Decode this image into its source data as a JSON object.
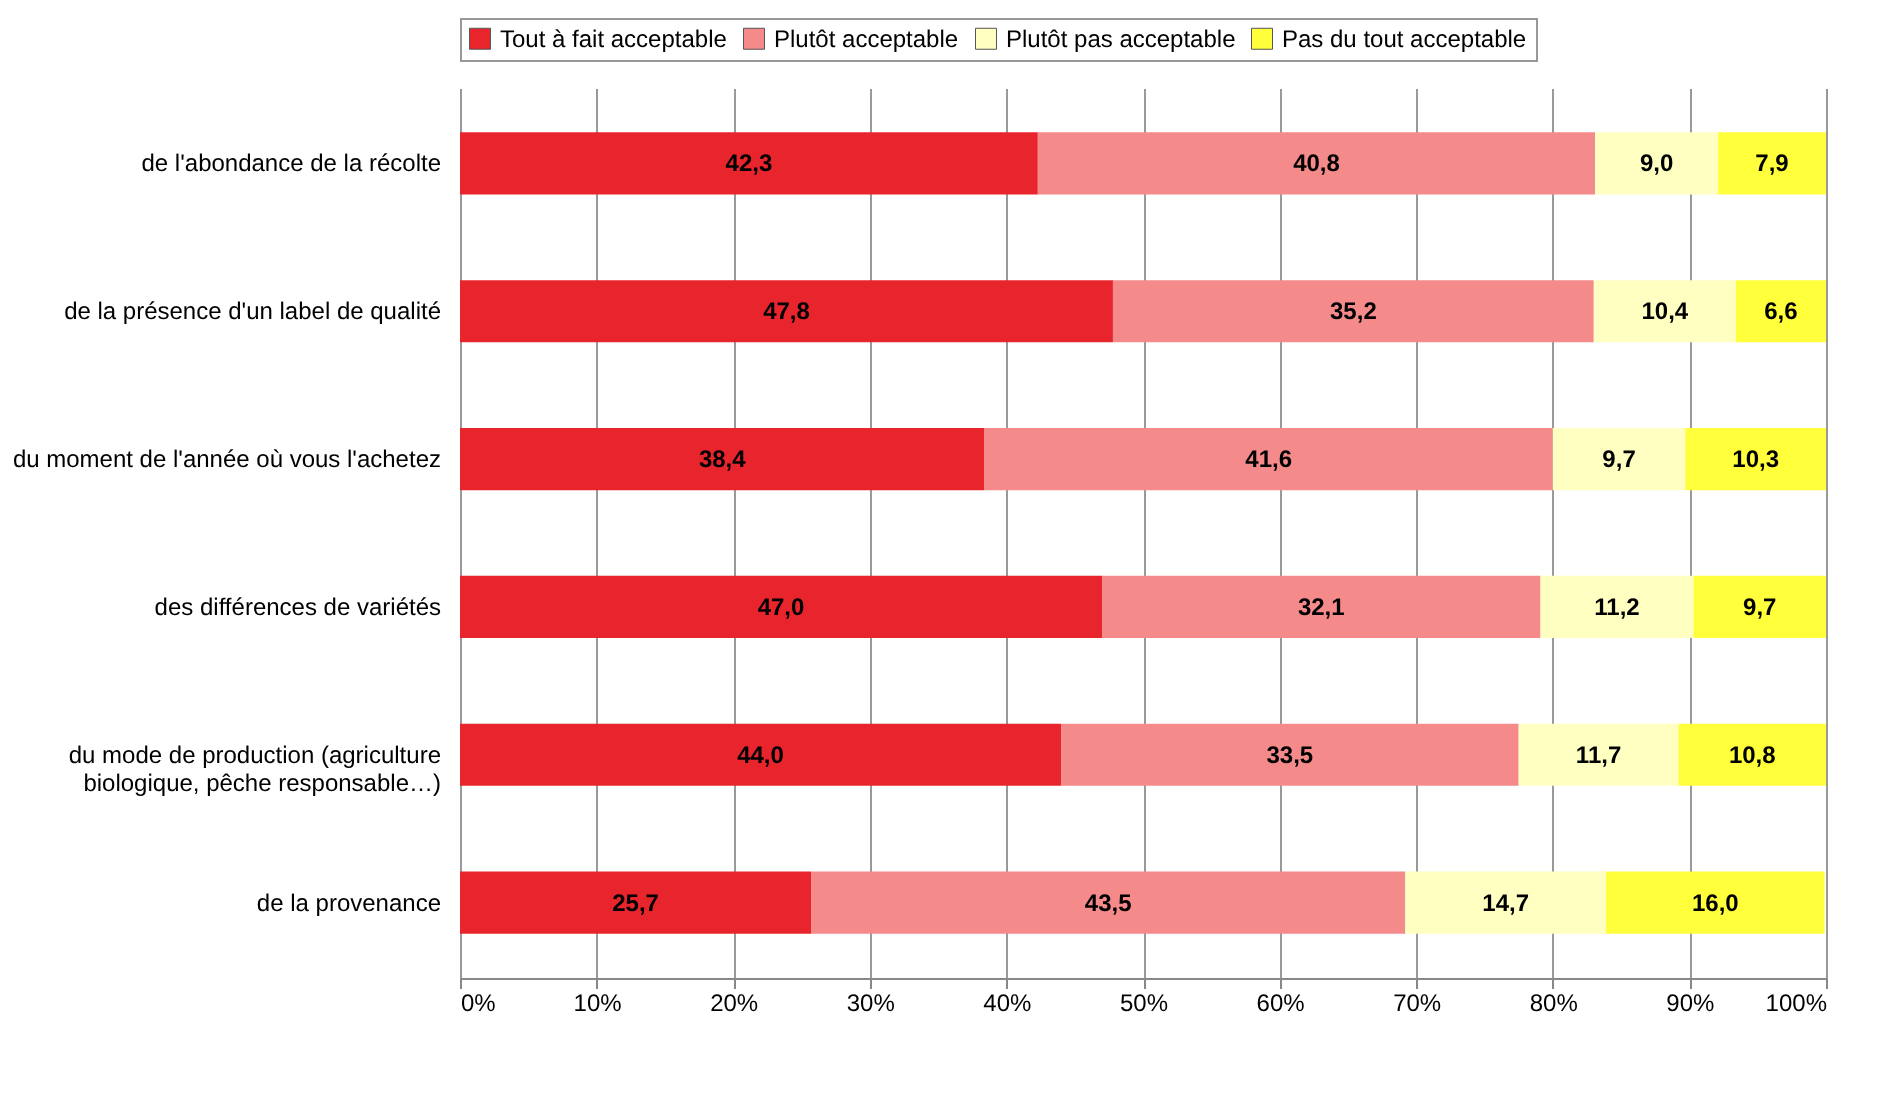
{
  "chart_data": {
    "type": "bar",
    "orientation": "horizontal",
    "stacked": true,
    "grid": "x",
    "legend": "top",
    "categories": [
      "de l'abondance de la récolte",
      "de la présence d'un label de qualité",
      "du moment de l'année où vous l'achetez",
      "des différences de variétés",
      "du mode de production (agriculture\nbiologique, pêche responsable…)",
      "de la provenance"
    ],
    "series": [
      {
        "name": "Tout à fait acceptable",
        "color": "#e8242c",
        "values": [
          42.3,
          47.8,
          38.4,
          47.0,
          44.0,
          25.7
        ],
        "value_labels": [
          "42,3",
          "47,8",
          "38,4",
          "47,0",
          "44,0",
          "25,7"
        ]
      },
      {
        "name": "Plutôt acceptable",
        "color": "#f58a8a",
        "values": [
          40.8,
          35.2,
          41.6,
          32.1,
          33.5,
          43.5
        ],
        "value_labels": [
          "40,8",
          "35,2",
          "41,6",
          "32,1",
          "33,5",
          "43,5"
        ]
      },
      {
        "name": "Plutôt pas acceptable",
        "color": "#ffffc2",
        "values": [
          9.0,
          10.4,
          9.7,
          11.2,
          11.7,
          14.7
        ],
        "value_labels": [
          "9,0",
          "10,4",
          "9,7",
          "11,2",
          "11,7",
          "14,7"
        ]
      },
      {
        "name": "Pas du tout acceptable",
        "color": "#ffff3c",
        "values": [
          7.9,
          6.6,
          10.3,
          9.7,
          10.8,
          16.0
        ],
        "value_labels": [
          "7,9",
          "6,6",
          "10,3",
          "9,7",
          "10,8",
          "16,0"
        ]
      }
    ],
    "xlim": [
      0,
      100
    ],
    "xticks": [
      {
        "value": 0,
        "label": "0%"
      },
      {
        "value": 10,
        "label": "10%"
      },
      {
        "value": 20,
        "label": "20%"
      },
      {
        "value": 30,
        "label": "30%"
      },
      {
        "value": 40,
        "label": "40%"
      },
      {
        "value": 50,
        "label": "50%"
      },
      {
        "value": 60,
        "label": "60%"
      },
      {
        "value": 70,
        "label": "70%"
      },
      {
        "value": 80,
        "label": "80%"
      },
      {
        "value": 90,
        "label": "90%"
      },
      {
        "value": 100,
        "label": "100%"
      }
    ]
  }
}
